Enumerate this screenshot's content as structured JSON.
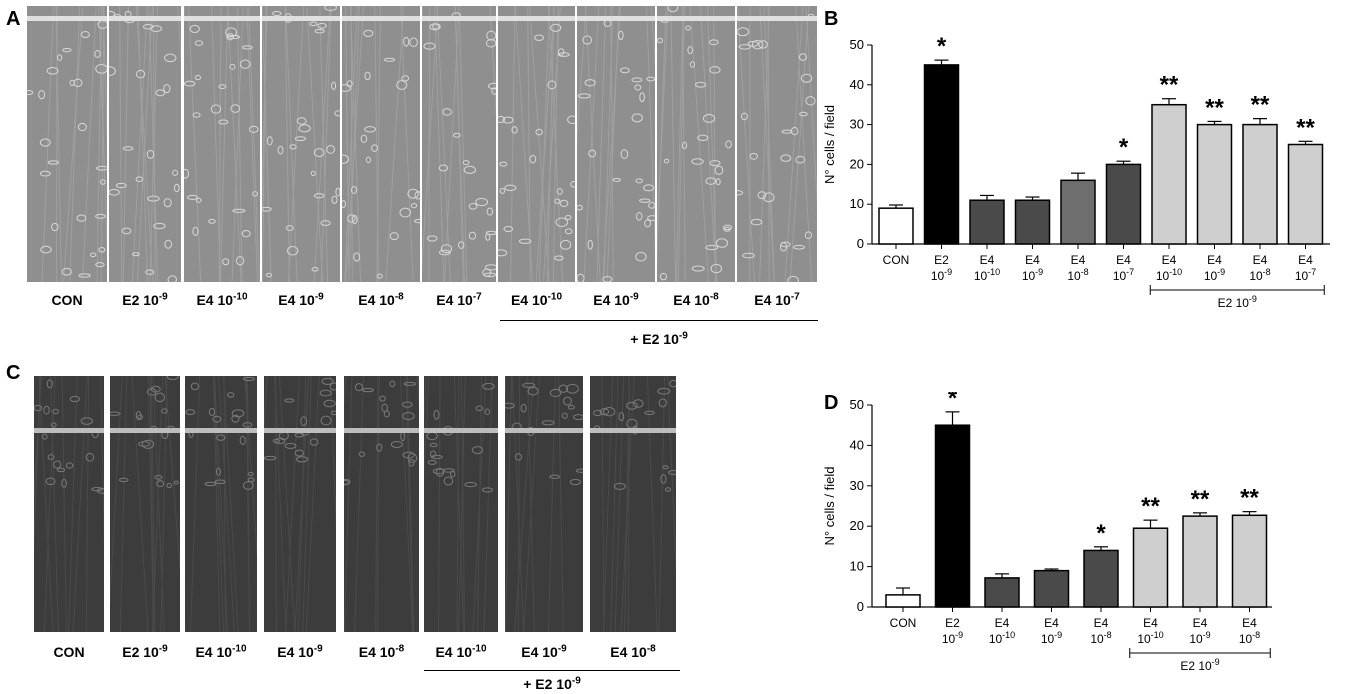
{
  "panels": {
    "a": {
      "letter": "A"
    },
    "b": {
      "letter": "B"
    },
    "c": {
      "letter": "C"
    },
    "d": {
      "letter": "D"
    }
  },
  "micrographs_a": {
    "labels": [
      {
        "base": "CON",
        "exp": ""
      },
      {
        "base": "E2 10",
        "exp": "-9"
      },
      {
        "base": "E4 10",
        "exp": "-10"
      },
      {
        "base": "E4 10",
        "exp": "-9"
      },
      {
        "base": "E4 10",
        "exp": "-8"
      },
      {
        "base": "E4 10",
        "exp": "-7"
      },
      {
        "base": "E4 10",
        "exp": "-10"
      },
      {
        "base": "E4 10",
        "exp": "-9"
      },
      {
        "base": "E4 10",
        "exp": "-8"
      },
      {
        "base": "E4 10",
        "exp": "-7"
      }
    ],
    "group_label": {
      "base": "+ E2 10",
      "exp": "-9"
    }
  },
  "micrographs_c": {
    "labels": [
      {
        "base": "CON",
        "exp": ""
      },
      {
        "base": "E2 10",
        "exp": "-9"
      },
      {
        "base": "E4 10",
        "exp": "-10"
      },
      {
        "base": "E4 10",
        "exp": "-9"
      },
      {
        "base": "E4 10",
        "exp": "-8"
      },
      {
        "base": "E4 10",
        "exp": "-10"
      },
      {
        "base": "E4 10",
        "exp": "-9"
      },
      {
        "base": "E4 10",
        "exp": "-8"
      }
    ],
    "group_label": {
      "base": "+ E2 10",
      "exp": "-9"
    }
  },
  "colors": {
    "con": "#ffffff",
    "e2": "#000000",
    "e4_dark": "#4a4a4a",
    "e4_mid": "#6e6e6e",
    "e4_comb": "#cfcfcf"
  },
  "chart_data": [
    {
      "id": "B",
      "type": "bar",
      "ylabel": "N° cells / field",
      "ylim": [
        0,
        50
      ],
      "yticks": [
        0,
        10,
        20,
        30,
        40,
        50
      ],
      "categories": [
        {
          "line1": "CON",
          "line2": "",
          "exp": ""
        },
        {
          "line1": "E2",
          "line2": "10",
          "exp": "-9"
        },
        {
          "line1": "E4",
          "line2": "10",
          "exp": "-10"
        },
        {
          "line1": "E4",
          "line2": "10",
          "exp": "-9"
        },
        {
          "line1": "E4",
          "line2": "10",
          "exp": "-8"
        },
        {
          "line1": "E4",
          "line2": "10",
          "exp": "-7"
        },
        {
          "line1": "E4",
          "line2": "10",
          "exp": "-10"
        },
        {
          "line1": "E4",
          "line2": "10",
          "exp": "-9"
        },
        {
          "line1": "E4",
          "line2": "10",
          "exp": "-8"
        },
        {
          "line1": "E4",
          "line2": "10",
          "exp": "-7"
        }
      ],
      "values": [
        9,
        45,
        11,
        11,
        16,
        20,
        35,
        30,
        30,
        25
      ],
      "errors": [
        0.8,
        1.2,
        1.2,
        0.8,
        1.8,
        0.8,
        1.5,
        0.8,
        1.5,
        0.8
      ],
      "fills": [
        "con",
        "e2",
        "e4_dark",
        "e4_dark",
        "e4_mid",
        "e4_dark",
        "e4_comb",
        "e4_comb",
        "e4_comb",
        "e4_comb"
      ],
      "significance": [
        "",
        "*",
        "",
        "",
        "",
        "*",
        "**",
        "**",
        "**",
        "**"
      ],
      "bracket": {
        "from": 6,
        "to": 9,
        "base": "E2  10",
        "exp": "-9"
      }
    },
    {
      "id": "D",
      "type": "bar",
      "ylabel": "N° cells / field",
      "ylim": [
        0,
        50
      ],
      "yticks": [
        0,
        10,
        20,
        30,
        40,
        50
      ],
      "categories": [
        {
          "line1": "CON",
          "line2": "",
          "exp": ""
        },
        {
          "line1": "E2",
          "line2": "10",
          "exp": "-9"
        },
        {
          "line1": "E4",
          "line2": "10",
          "exp": "-10"
        },
        {
          "line1": "E4",
          "line2": "10",
          "exp": "-9"
        },
        {
          "line1": "E4",
          "line2": "10",
          "exp": "-8"
        },
        {
          "line1": "E4",
          "line2": "10",
          "exp": "-10"
        },
        {
          "line1": "E4",
          "line2": "10",
          "exp": "-9"
        },
        {
          "line1": "E4",
          "line2": "10",
          "exp": "-8"
        }
      ],
      "values": [
        3,
        45,
        7.2,
        9,
        14,
        19.5,
        22.5,
        22.7
      ],
      "errors": [
        1.7,
        3.3,
        1.0,
        0.4,
        0.9,
        2.0,
        0.8,
        0.9
      ],
      "fills": [
        "con",
        "e2",
        "e4_dark",
        "e4_dark",
        "e4_dark",
        "e4_comb",
        "e4_comb",
        "e4_comb"
      ],
      "significance": [
        "",
        "*",
        "",
        "",
        "*",
        "**",
        "**",
        "**"
      ],
      "bracket": {
        "from": 5,
        "to": 7,
        "base": "E2  10",
        "exp": "-9"
      }
    }
  ]
}
